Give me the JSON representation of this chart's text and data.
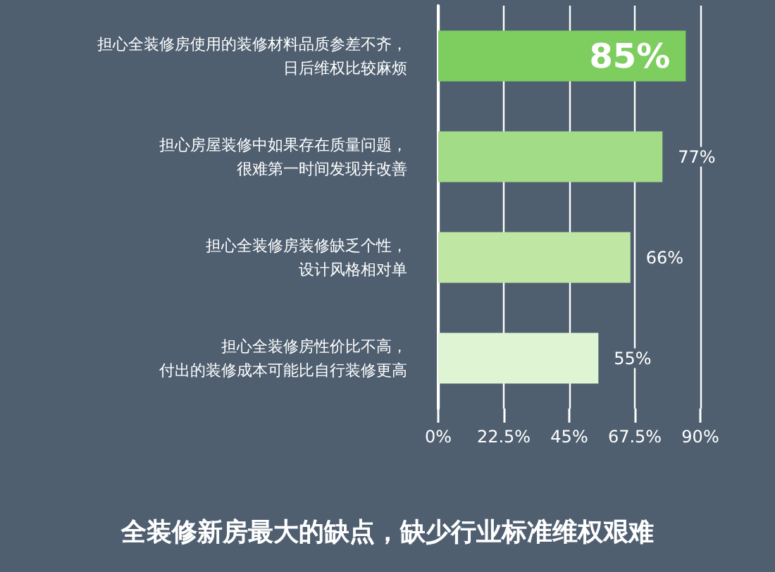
{
  "chart_data": {
    "type": "bar",
    "orientation": "horizontal",
    "title": "全装修新房最大的缺点，缺少行业标准维权艰难",
    "categories": [
      "担心全装修房使用的装修材料品质参差不齐，日后维权比较麻烦",
      "担心房屋装修中如果存在质量问题，很难第一时间发现并改善",
      "担心全装修房装修缺乏个性，设计风格相对单",
      "担心全装修房性价比不高，付出的装修成本可能比自行装修更高"
    ],
    "values": [
      85,
      77,
      66,
      55
    ],
    "colors": [
      "#7dcd5f",
      "#a2dc86",
      "#bfe6a3",
      "#def4d3"
    ],
    "value_labels": [
      "85%",
      "77%",
      "66%",
      "55%"
    ],
    "xlim": [
      0,
      90
    ],
    "xticks": [
      {
        "value": 0,
        "label": "0%"
      },
      {
        "value": 22.5,
        "label": "22.5%"
      },
      {
        "value": 45,
        "label": "45%"
      },
      {
        "value": 67.5,
        "label": "67.5%"
      },
      {
        "value": 90,
        "label": "90%"
      }
    ],
    "grid": "x"
  }
}
